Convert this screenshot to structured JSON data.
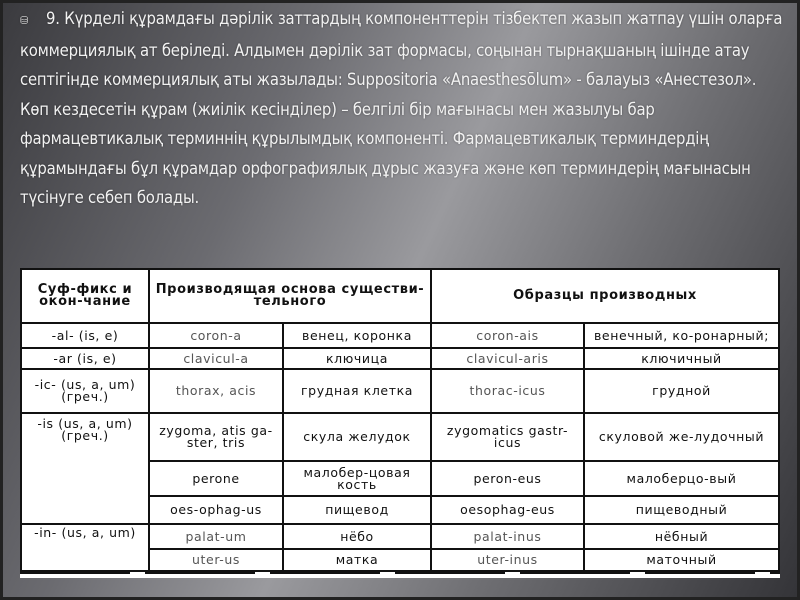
{
  "slide": {
    "bullet_icon": "bullet-icon",
    "paragraphs": [
      "9. Күрделі құрамдағы дәрілік заттардың компоненттерін тізбектеп жазып жатпау үшін оларға коммерциялық ат беріледі. Алдымен дәрілік зат формасы, соңынан тырнақшаның ішінде атау септігінде коммерциялық аты жазылады: Suppositoria «Anaesthesōlum» - балауыз «Анестезол».",
      "Көп кездесетін құрам (жиілік кесінділер) – белгілі бір мағынасы мен жазылуы бар фармацевтикалық терминнің құрылымдық компоненті. Фармацевтикалық терминдердің құрамындағы бұл құрамдар орфографиялық дұрыс жазуға және көп терминдерің мағынасын түсінуге себеп болады."
    ]
  },
  "table": {
    "headers": [
      "Суф-фикс и окон-чание",
      "Производящая основа существи-тельного",
      "Образцы производных"
    ],
    "rows": [
      {
        "suffix": "-al- (is, e)",
        "stem": "coron-a",
        "stem_ru": "венец, коронка",
        "derived": "coron-ais",
        "derived_ru": "венечный, ко-ронарный;"
      },
      {
        "suffix": "-ar (is, e)",
        "stem": "clavicul-a",
        "stem_ru": "ключица",
        "derived": "clavicul-aris",
        "derived_ru": "ключичный"
      },
      {
        "suffix": "-ic- (us, a, um) (греч.)",
        "stem": "thorax, acis",
        "stem_ru": "грудная клетка",
        "derived": "thorac-icus",
        "derived_ru": "грудной"
      },
      {
        "suffix": "-is (us, a, um) (греч.)",
        "stem": "zygoma, atis ga-ster, tris",
        "stem_ru": "скула желудок",
        "derived": "zygomatics gastr-icus",
        "derived_ru": "скуловой же-лудочный"
      },
      {
        "suffix": "",
        "stem": "perone",
        "stem_ru": "малобер-цовая кость",
        "derived": "peron-eus",
        "derived_ru": "малоберцо-вый"
      },
      {
        "suffix": "",
        "stem": "oes-ophag-us",
        "stem_ru": "пищевод",
        "derived": "oesophag-eus",
        "derived_ru": "пищеводный"
      },
      {
        "suffix": "-in- (us, a, um)",
        "stem": "palat-um",
        "stem_ru": "нёбо",
        "derived": "palat-inus",
        "derived_ru": "нёбный"
      },
      {
        "suffix": "",
        "stem": "uter-us",
        "stem_ru": "матка",
        "derived": "uter-inus",
        "derived_ru": "маточный"
      }
    ]
  }
}
